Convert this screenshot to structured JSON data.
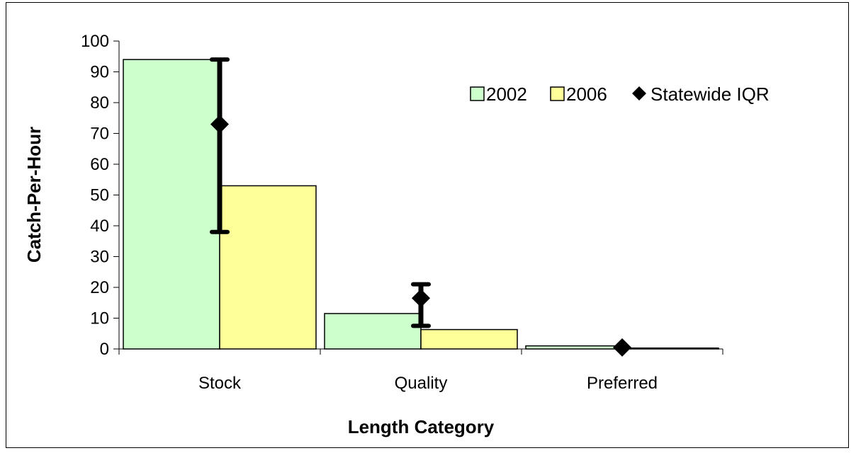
{
  "chart_data": {
    "type": "bar",
    "categories": [
      "Stock",
      "Quality",
      "Preferred"
    ],
    "series": [
      {
        "name": "2002",
        "values": [
          94,
          11.5,
          1
        ],
        "color": "#CCFFCC"
      },
      {
        "name": "2006",
        "values": [
          53,
          6.3,
          0.3
        ],
        "color": "#FFFF99"
      }
    ],
    "iqr": {
      "name": "Statewide IQR",
      "median": [
        73,
        16.5,
        0.5
      ],
      "low": [
        38,
        7.5,
        0.2
      ],
      "high": [
        94,
        21,
        0.8
      ],
      "color": "#000000"
    },
    "xlabel": "Length Category",
    "ylabel": "Catch-Per-Hour",
    "ylim": [
      0,
      100
    ],
    "yticks": [
      "0",
      "10",
      "20",
      "30",
      "40",
      "50",
      "60",
      "70",
      "80",
      "90",
      "100"
    ],
    "legend_position": "top-right",
    "grid": false
  }
}
